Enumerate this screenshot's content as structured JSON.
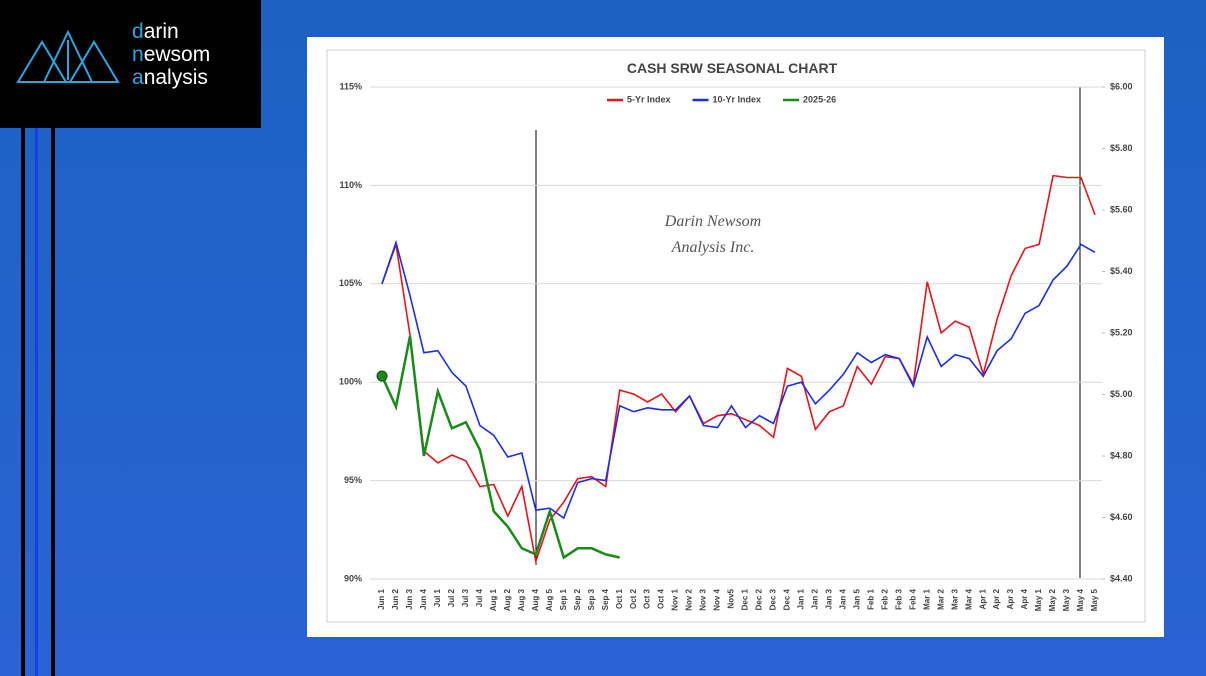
{
  "logo": {
    "lines": [
      "darin",
      "newsom",
      "analysis"
    ]
  },
  "chart_data": {
    "type": "line",
    "title": "CASH SRW SEASONAL CHART",
    "annotations": [
      "Darin Newsom",
      "Analysis Inc."
    ],
    "categories": [
      "Jun 1",
      "Jun 2",
      "Jun 3",
      "Jun 4",
      "Jul 1",
      "Jul 2",
      "Jul 3",
      "Jul 4",
      "Aug 1",
      "Aug 2",
      "Aug 3",
      "Aug 4",
      "Aug 5",
      "Sep 1",
      "Sep 2",
      "Sep 3",
      "Sep 4",
      "Oct 1",
      "Oct 2",
      "Oct 3",
      "Oct 4",
      "Nov 1",
      "Nov 2",
      "Nov 3",
      "Nov 4",
      "Nov5",
      "Dec 1",
      "Dec 2",
      "Dec 3",
      "Dec 4",
      "Jan 1",
      "Jan 2",
      "Jan 3",
      "Jan 4",
      "Jan 5",
      "Feb 1",
      "Feb 2",
      "Feb 3",
      "Feb 4",
      "Mar 1",
      "Mar 2",
      "Mar 3",
      "Mar 4",
      "Apr 1",
      "Apr 2",
      "Apr 3",
      "Apr 4",
      "May 1",
      "May 2",
      "May 3",
      "May 4",
      "May 5"
    ],
    "series": [
      {
        "name": "5-Yr Index",
        "color": "#e8141b",
        "axis": "y",
        "values": [
          105.0,
          107.0,
          102.4,
          96.5,
          95.9,
          96.3,
          96.0,
          94.7,
          94.8,
          93.2,
          94.7,
          90.9,
          93.0,
          93.9,
          95.1,
          95.2,
          94.7,
          99.6,
          99.4,
          99.0,
          99.4,
          98.5,
          99.3,
          97.9,
          98.3,
          98.4,
          98.1,
          97.8,
          97.2,
          100.7,
          100.3,
          97.6,
          98.5,
          98.8,
          100.8,
          99.9,
          101.3,
          101.2,
          99.9,
          105.1,
          102.5,
          103.1,
          102.8,
          100.4,
          103.2,
          105.4,
          106.8,
          107.0,
          110.5,
          110.4,
          110.4,
          108.5
        ]
      },
      {
        "name": "10-Yr Index",
        "color": "#1a2fe6",
        "axis": "y",
        "values": [
          105.0,
          107.1,
          104.4,
          101.5,
          101.6,
          100.5,
          99.8,
          97.8,
          97.3,
          96.2,
          96.4,
          93.5,
          93.6,
          93.1,
          94.9,
          95.1,
          95.0,
          98.8,
          98.5,
          98.7,
          98.6,
          98.6,
          99.3,
          97.8,
          97.7,
          98.8,
          97.7,
          98.3,
          97.9,
          99.8,
          100.0,
          98.9,
          99.6,
          100.4,
          101.5,
          101.0,
          101.4,
          101.2,
          99.8,
          102.3,
          100.8,
          101.4,
          101.2,
          100.3,
          101.6,
          102.2,
          103.5,
          103.9,
          105.2,
          105.9,
          107.0,
          106.6
        ]
      },
      {
        "name": "2025-26",
        "color": "#1a8a1a",
        "axis": "y2",
        "values": [
          5.06,
          4.96,
          5.19,
          4.8,
          5.01,
          4.89,
          4.91,
          4.82,
          4.62,
          4.57,
          4.5,
          4.48,
          4.62,
          4.47,
          4.5,
          4.5,
          4.48,
          4.47,
          null,
          null,
          null,
          null,
          null,
          null,
          null,
          null,
          null,
          null,
          null,
          null,
          null,
          null,
          null,
          null,
          null,
          null,
          null,
          null,
          null,
          null,
          null,
          null,
          null,
          null,
          null,
          null,
          null,
          null,
          null,
          null,
          null,
          null
        ]
      }
    ],
    "ylim": [
      90,
      115
    ],
    "yticks": [
      {
        "value": 90,
        "label": "90%"
      },
      {
        "value": 95,
        "label": "95%"
      },
      {
        "value": 100,
        "label": "100%"
      },
      {
        "value": 105,
        "label": "105%"
      },
      {
        "value": 110,
        "label": "110%"
      },
      {
        "value": 115,
        "label": "115%"
      }
    ],
    "y2lim": [
      4.4,
      6.0
    ],
    "y2ticks": [
      {
        "value": 4.4,
        "label": "$4.40"
      },
      {
        "value": 4.6,
        "label": "$4.60"
      },
      {
        "value": 4.8,
        "label": "$4.80"
      },
      {
        "value": 5.0,
        "label": "$5.00"
      },
      {
        "value": 5.2,
        "label": "$5.20"
      },
      {
        "value": 5.4,
        "label": "$5.40"
      },
      {
        "value": 5.6,
        "label": "$5.60"
      },
      {
        "value": 5.8,
        "label": "$5.80"
      },
      {
        "value": 6.0,
        "label": "$6.00"
      }
    ],
    "grid": true,
    "legend": "top"
  }
}
